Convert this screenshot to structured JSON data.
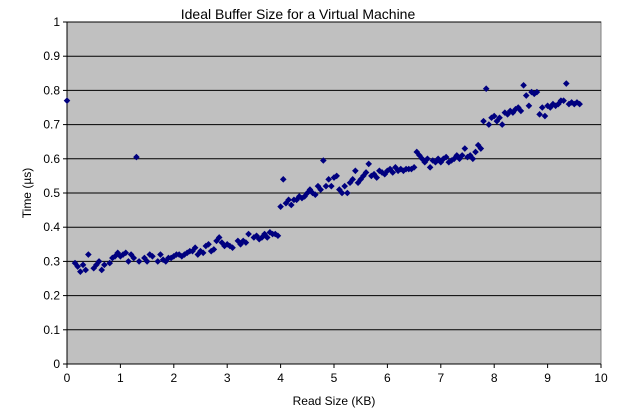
{
  "chart_data": {
    "type": "scatter",
    "title": "Ideal Buffer Size for a Virtual Machine",
    "xlabel": "Read Size (KB)",
    "ylabel": "Time (µs)",
    "xlim": [
      0,
      10
    ],
    "ylim": [
      0,
      1
    ],
    "xticks": [
      "0",
      "1",
      "2",
      "3",
      "4",
      "5",
      "6",
      "7",
      "8",
      "9",
      "10"
    ],
    "yticks": [
      "0",
      "0.1",
      "0.2",
      "0.3",
      "0.4",
      "0.5",
      "0.6",
      "0.7",
      "0.8",
      "0.9",
      "1"
    ],
    "grid": "horizontal",
    "colors": {
      "plot_bg": "#c0c0c0",
      "marker": "#00007f",
      "grid": "#000000"
    },
    "points": [
      [
        0.0,
        0.77
      ],
      [
        0.15,
        0.295
      ],
      [
        0.2,
        0.285
      ],
      [
        0.25,
        0.27
      ],
      [
        0.3,
        0.29
      ],
      [
        0.35,
        0.275
      ],
      [
        0.4,
        0.32
      ],
      [
        0.5,
        0.28
      ],
      [
        0.55,
        0.29
      ],
      [
        0.6,
        0.3
      ],
      [
        0.65,
        0.275
      ],
      [
        0.7,
        0.29
      ],
      [
        0.8,
        0.295
      ],
      [
        0.85,
        0.31
      ],
      [
        0.9,
        0.315
      ],
      [
        0.95,
        0.325
      ],
      [
        1.0,
        0.315
      ],
      [
        1.05,
        0.32
      ],
      [
        1.1,
        0.325
      ],
      [
        1.15,
        0.3
      ],
      [
        1.2,
        0.32
      ],
      [
        1.25,
        0.31
      ],
      [
        1.3,
        0.605
      ],
      [
        1.35,
        0.3
      ],
      [
        1.45,
        0.31
      ],
      [
        1.5,
        0.3
      ],
      [
        1.55,
        0.32
      ],
      [
        1.6,
        0.315
      ],
      [
        1.7,
        0.3
      ],
      [
        1.75,
        0.32
      ],
      [
        1.8,
        0.305
      ],
      [
        1.85,
        0.3
      ],
      [
        1.9,
        0.31
      ],
      [
        1.95,
        0.31
      ],
      [
        2.0,
        0.315
      ],
      [
        2.05,
        0.32
      ],
      [
        2.1,
        0.32
      ],
      [
        2.15,
        0.315
      ],
      [
        2.2,
        0.32
      ],
      [
        2.25,
        0.325
      ],
      [
        2.3,
        0.33
      ],
      [
        2.35,
        0.33
      ],
      [
        2.4,
        0.34
      ],
      [
        2.45,
        0.32
      ],
      [
        2.5,
        0.33
      ],
      [
        2.55,
        0.325
      ],
      [
        2.6,
        0.345
      ],
      [
        2.65,
        0.35
      ],
      [
        2.7,
        0.33
      ],
      [
        2.75,
        0.335
      ],
      [
        2.8,
        0.36
      ],
      [
        2.85,
        0.37
      ],
      [
        2.9,
        0.355
      ],
      [
        2.95,
        0.345
      ],
      [
        3.0,
        0.35
      ],
      [
        3.05,
        0.345
      ],
      [
        3.1,
        0.34
      ],
      [
        3.2,
        0.36
      ],
      [
        3.25,
        0.35
      ],
      [
        3.3,
        0.36
      ],
      [
        3.35,
        0.355
      ],
      [
        3.4,
        0.38
      ],
      [
        3.5,
        0.37
      ],
      [
        3.55,
        0.375
      ],
      [
        3.6,
        0.365
      ],
      [
        3.65,
        0.37
      ],
      [
        3.7,
        0.38
      ],
      [
        3.75,
        0.37
      ],
      [
        3.8,
        0.385
      ],
      [
        3.85,
        0.38
      ],
      [
        3.9,
        0.38
      ],
      [
        3.95,
        0.375
      ],
      [
        4.0,
        0.46
      ],
      [
        4.05,
        0.54
      ],
      [
        4.1,
        0.47
      ],
      [
        4.15,
        0.48
      ],
      [
        4.2,
        0.465
      ],
      [
        4.25,
        0.48
      ],
      [
        4.3,
        0.48
      ],
      [
        4.35,
        0.49
      ],
      [
        4.4,
        0.485
      ],
      [
        4.45,
        0.49
      ],
      [
        4.5,
        0.5
      ],
      [
        4.55,
        0.51
      ],
      [
        4.6,
        0.5
      ],
      [
        4.65,
        0.495
      ],
      [
        4.7,
        0.52
      ],
      [
        4.75,
        0.51
      ],
      [
        4.8,
        0.595
      ],
      [
        4.85,
        0.52
      ],
      [
        4.9,
        0.54
      ],
      [
        4.95,
        0.52
      ],
      [
        5.0,
        0.545
      ],
      [
        5.05,
        0.55
      ],
      [
        5.1,
        0.51
      ],
      [
        5.15,
        0.5
      ],
      [
        5.2,
        0.52
      ],
      [
        5.25,
        0.5
      ],
      [
        5.3,
        0.53
      ],
      [
        5.35,
        0.54
      ],
      [
        5.4,
        0.565
      ],
      [
        5.45,
        0.53
      ],
      [
        5.5,
        0.54
      ],
      [
        5.55,
        0.55
      ],
      [
        5.6,
        0.56
      ],
      [
        5.65,
        0.585
      ],
      [
        5.7,
        0.55
      ],
      [
        5.75,
        0.555
      ],
      [
        5.8,
        0.545
      ],
      [
        5.85,
        0.565
      ],
      [
        5.9,
        0.56
      ],
      [
        5.95,
        0.555
      ],
      [
        6.0,
        0.565
      ],
      [
        6.05,
        0.57
      ],
      [
        6.1,
        0.56
      ],
      [
        6.15,
        0.575
      ],
      [
        6.2,
        0.565
      ],
      [
        6.25,
        0.57
      ],
      [
        6.3,
        0.565
      ],
      [
        6.35,
        0.57
      ],
      [
        6.4,
        0.57
      ],
      [
        6.45,
        0.57
      ],
      [
        6.5,
        0.575
      ],
      [
        6.55,
        0.62
      ],
      [
        6.6,
        0.61
      ],
      [
        6.65,
        0.6
      ],
      [
        6.7,
        0.59
      ],
      [
        6.75,
        0.6
      ],
      [
        6.8,
        0.575
      ],
      [
        6.85,
        0.595
      ],
      [
        6.9,
        0.59
      ],
      [
        6.95,
        0.6
      ],
      [
        7.0,
        0.59
      ],
      [
        7.05,
        0.6
      ],
      [
        7.1,
        0.605
      ],
      [
        7.15,
        0.59
      ],
      [
        7.2,
        0.595
      ],
      [
        7.25,
        0.6
      ],
      [
        7.3,
        0.61
      ],
      [
        7.35,
        0.6
      ],
      [
        7.4,
        0.61
      ],
      [
        7.45,
        0.63
      ],
      [
        7.5,
        0.605
      ],
      [
        7.55,
        0.61
      ],
      [
        7.6,
        0.6
      ],
      [
        7.65,
        0.62
      ],
      [
        7.7,
        0.64
      ],
      [
        7.75,
        0.63
      ],
      [
        7.8,
        0.71
      ],
      [
        7.85,
        0.805
      ],
      [
        7.9,
        0.7
      ],
      [
        7.95,
        0.72
      ],
      [
        8.0,
        0.725
      ],
      [
        8.05,
        0.71
      ],
      [
        8.1,
        0.72
      ],
      [
        8.15,
        0.7
      ],
      [
        8.2,
        0.735
      ],
      [
        8.25,
        0.73
      ],
      [
        8.3,
        0.74
      ],
      [
        8.35,
        0.735
      ],
      [
        8.4,
        0.745
      ],
      [
        8.45,
        0.75
      ],
      [
        8.5,
        0.74
      ],
      [
        8.55,
        0.815
      ],
      [
        8.6,
        0.785
      ],
      [
        8.65,
        0.755
      ],
      [
        8.7,
        0.795
      ],
      [
        8.75,
        0.79
      ],
      [
        8.8,
        0.795
      ],
      [
        8.85,
        0.73
      ],
      [
        8.9,
        0.75
      ],
      [
        8.95,
        0.725
      ],
      [
        9.0,
        0.755
      ],
      [
        9.05,
        0.75
      ],
      [
        9.1,
        0.76
      ],
      [
        9.15,
        0.755
      ],
      [
        9.2,
        0.76
      ],
      [
        9.25,
        0.77
      ],
      [
        9.3,
        0.77
      ],
      [
        9.35,
        0.82
      ],
      [
        9.4,
        0.76
      ],
      [
        9.45,
        0.765
      ],
      [
        9.5,
        0.76
      ],
      [
        9.55,
        0.765
      ],
      [
        9.6,
        0.76
      ]
    ]
  }
}
